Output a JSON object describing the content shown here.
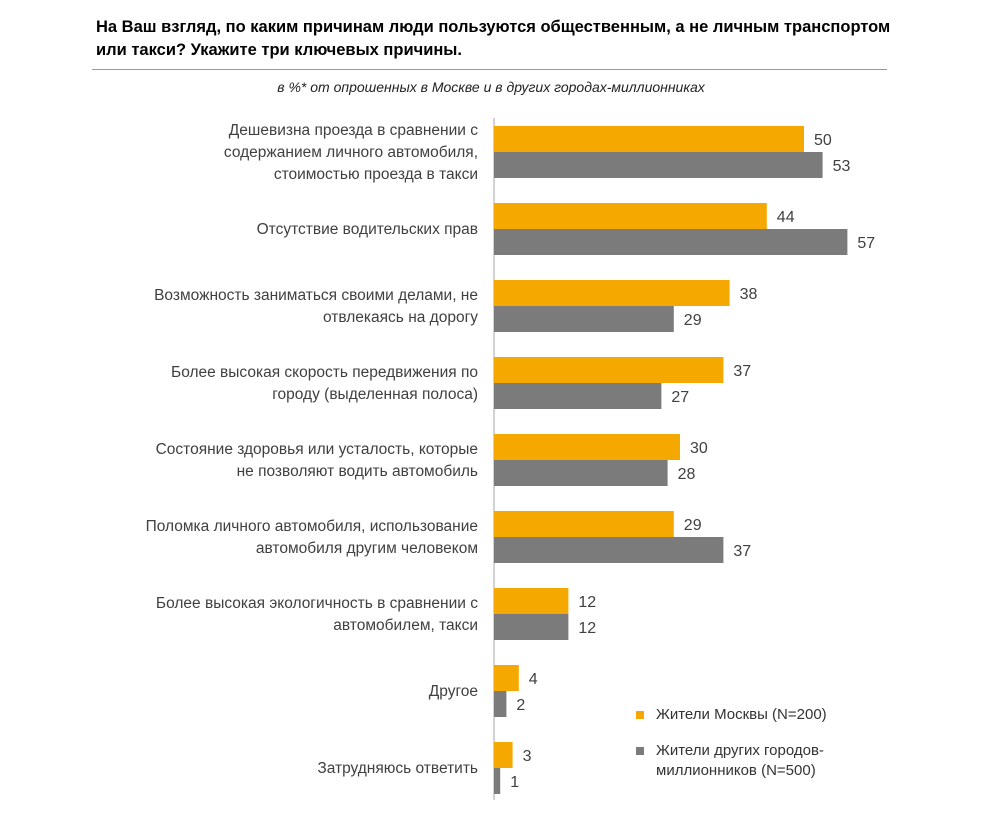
{
  "title": "На Ваш взгляд, по каким причинам люди пользуются общественным, а не личным транспортом или такси? Укажите три ключевых причины.",
  "subtitle": "в %* от опрошенных в Москве и в других городах-миллионниках",
  "colors": {
    "moscow": "#f5a800",
    "other": "#7b7b7b",
    "axis": "#a6a6a6",
    "label": "#404040"
  },
  "legend": [
    {
      "key": "moscow",
      "label": "Жители Москвы (N=200)"
    },
    {
      "key": "other",
      "label": "Жители других городов-миллионников (N=500)"
    }
  ],
  "chart_data": {
    "type": "bar",
    "orientation": "horizontal",
    "title": "На Ваш взгляд, по каким причинам люди пользуются общественным, а не личным транспортом или такси? Укажите три ключевых причины.",
    "subtitle": "в %* от опрошенных в Москве и в других городах-миллионниках",
    "categories": [
      [
        "Дешевизна проезда в сравнении с",
        "содержанием личного автомобиля,",
        "стоимостью проезда в такси"
      ],
      [
        "Отсутствие водительских прав"
      ],
      [
        "Возможность заниматься своими делами, не",
        "отвлекаясь на дорогу"
      ],
      [
        "Более высокая скорость передвижения по",
        "городу (выделенная полоса)"
      ],
      [
        "Состояние здоровья или усталость, которые",
        "не позволяют водить автомобиль"
      ],
      [
        "Поломка личного автомобиля, использование",
        "автомобиля другим человеком"
      ],
      [
        "Более высокая экологичность в сравнении с",
        "автомобилем, такси"
      ],
      [
        "Другое"
      ],
      [
        "Затрудняюсь ответить"
      ]
    ],
    "series": [
      {
        "name": "Жители Москвы (N=200)",
        "values": [
          50,
          44,
          38,
          37,
          30,
          29,
          12,
          4,
          3
        ]
      },
      {
        "name": "Жители других городов-миллионников (N=500)",
        "values": [
          53,
          57,
          29,
          27,
          28,
          37,
          12,
          2,
          1
        ]
      }
    ],
    "xlim": [
      0,
      57
    ],
    "legend_position": "bottom-right"
  }
}
